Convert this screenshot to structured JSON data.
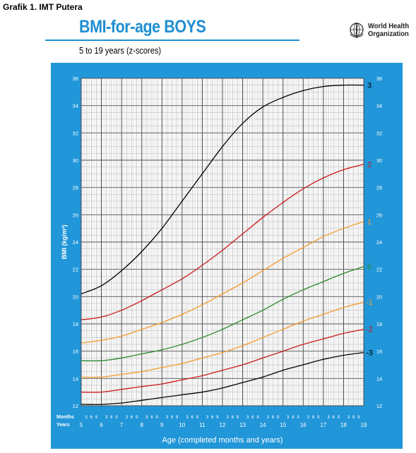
{
  "caption": "Grafik 1. IMT Putera",
  "header": {
    "title": "BMI-for-age  BOYS",
    "subtitle": "5 to 19 years (z-scores)",
    "org_line1": "World Health",
    "org_line2": "Organization"
  },
  "colors": {
    "frame": "#2196d8",
    "title": "#1f8ed0",
    "z3": "#000000",
    "z2": "#cc1a1a",
    "z1": "#f59a2a",
    "z0": "#2a8a2a"
  },
  "chart_data": {
    "type": "line",
    "xlabel": "Age (completed months and years)",
    "ylabel": "BMI (kg/m²)",
    "xlim": [
      5,
      19
    ],
    "ylim": [
      12,
      36
    ],
    "y_ticks": [
      12,
      14,
      16,
      18,
      20,
      22,
      24,
      26,
      28,
      30,
      32,
      34,
      36
    ],
    "x_ticks": [
      5,
      6,
      7,
      8,
      9,
      10,
      11,
      12,
      13,
      14,
      15,
      16,
      17,
      18,
      19
    ],
    "months_row_label": "Months",
    "years_row_label": "Years",
    "month_ticks": [
      "3",
      "6",
      "9"
    ],
    "grid": true,
    "x": [
      5,
      6,
      7,
      8,
      9,
      10,
      11,
      12,
      13,
      14,
      15,
      16,
      17,
      18,
      19
    ],
    "series": [
      {
        "name": "3",
        "color": "#000000",
        "values": [
          20.2,
          20.8,
          21.9,
          23.3,
          25.0,
          27.0,
          29.0,
          31.0,
          32.7,
          33.9,
          34.6,
          35.1,
          35.4,
          35.5,
          35.5
        ]
      },
      {
        "name": "2",
        "color": "#cc1a1a",
        "values": [
          18.3,
          18.5,
          19.0,
          19.7,
          20.5,
          21.3,
          22.3,
          23.4,
          24.6,
          25.8,
          26.9,
          27.9,
          28.7,
          29.3,
          29.7
        ]
      },
      {
        "name": "1",
        "color": "#f59a2a",
        "values": [
          16.6,
          16.8,
          17.1,
          17.6,
          18.1,
          18.7,
          19.4,
          20.2,
          21.0,
          21.9,
          22.8,
          23.6,
          24.4,
          25.0,
          25.5
        ]
      },
      {
        "name": "0",
        "color": "#2a8a2a",
        "values": [
          15.3,
          15.3,
          15.5,
          15.8,
          16.1,
          16.5,
          17.0,
          17.6,
          18.3,
          19.0,
          19.8,
          20.5,
          21.1,
          21.7,
          22.2
        ]
      },
      {
        "name": "-1",
        "color": "#f59a2a",
        "values": [
          14.1,
          14.1,
          14.3,
          14.5,
          14.8,
          15.1,
          15.5,
          15.9,
          16.4,
          17.0,
          17.6,
          18.2,
          18.7,
          19.2,
          19.6
        ]
      },
      {
        "name": "-2",
        "color": "#cc1a1a",
        "values": [
          13.0,
          13.0,
          13.2,
          13.4,
          13.6,
          13.9,
          14.2,
          14.6,
          15.0,
          15.5,
          16.0,
          16.5,
          16.9,
          17.3,
          17.6
        ]
      },
      {
        "name": "-3",
        "color": "#000000",
        "values": [
          12.1,
          12.1,
          12.2,
          12.4,
          12.6,
          12.8,
          13.0,
          13.3,
          13.7,
          14.1,
          14.6,
          15.0,
          15.4,
          15.7,
          15.9
        ]
      }
    ]
  }
}
